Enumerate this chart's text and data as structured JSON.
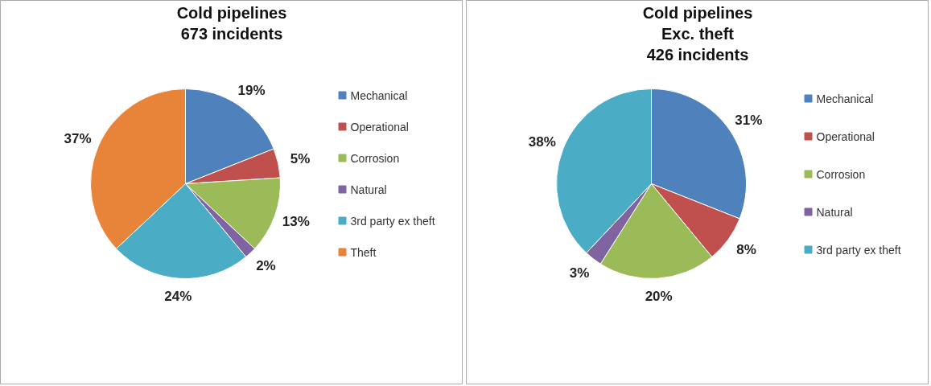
{
  "chart_data": [
    {
      "type": "pie",
      "title": "Cold pipelines\n673 incidents",
      "categories": [
        "Mechanical",
        "Operational",
        "Corrosion",
        "Natural",
        "3rd party ex theft",
        "Theft"
      ],
      "values": [
        19,
        5,
        13,
        2,
        24,
        37
      ],
      "colors": [
        "#4f81bd",
        "#c0504d",
        "#9bbb59",
        "#8064a2",
        "#4bacc6",
        "#e8833a"
      ],
      "value_labels": [
        "19%",
        "5%",
        "13%",
        "2%",
        "24%",
        "37%"
      ],
      "legend": "right"
    },
    {
      "type": "pie",
      "title": "Cold pipelines\nExc. theft\n426 incidents",
      "categories": [
        "Mechanical",
        "Operational",
        "Corrosion",
        "Natural",
        "3rd party ex theft"
      ],
      "values": [
        31,
        8,
        20,
        3,
        38
      ],
      "colors": [
        "#4f81bd",
        "#c0504d",
        "#9bbb59",
        "#8064a2",
        "#4bacc6"
      ],
      "value_labels": [
        "31%",
        "8%",
        "20%",
        "3%",
        "38%"
      ],
      "legend": "right"
    }
  ]
}
